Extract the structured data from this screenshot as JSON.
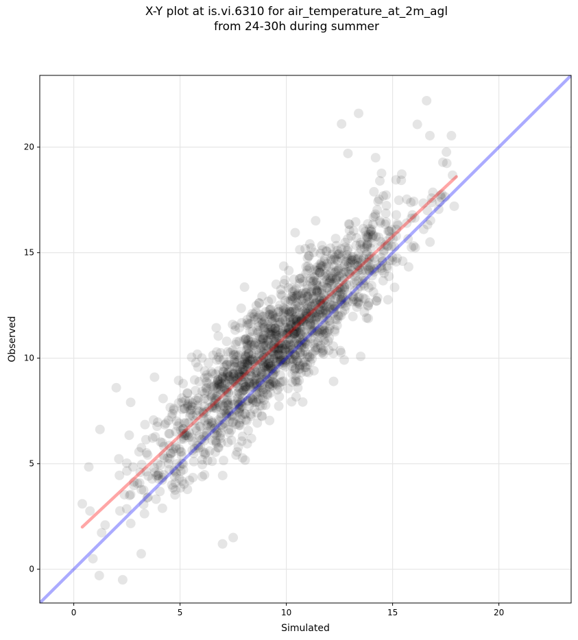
{
  "chart_data": {
    "type": "scatter",
    "title": [
      "X-Y plot at is.vi.6310 for air_temperature_at_2m_agl",
      "from 24-30h during summer"
    ],
    "xlabel": "Simulated",
    "ylabel": "Observed",
    "xlim": [
      -1.6,
      23.4
    ],
    "ylim": [
      -1.6,
      23.4
    ],
    "xticks": [
      0,
      5,
      10,
      15,
      20
    ],
    "yticks": [
      0,
      5,
      10,
      15,
      20
    ],
    "xtick_labels": [
      "0",
      "5",
      "10",
      "15",
      "20"
    ],
    "ytick_labels": [
      "0",
      "5",
      "10",
      "15",
      "20"
    ],
    "grid": true,
    "points": {
      "color": "#000000",
      "alpha": 0.1,
      "count": 1600,
      "cluster_center": [
        9.5,
        10.5
      ],
      "highlighted_outliers": [
        [
          16.6,
          22.2
        ],
        [
          13.4,
          21.6
        ],
        [
          12.6,
          21.1
        ],
        [
          12.9,
          19.7
        ],
        [
          14.2,
          19.5
        ],
        [
          14.4,
          18.4
        ],
        [
          2.0,
          8.6
        ],
        [
          3.8,
          9.1
        ],
        [
          0.4,
          3.1
        ],
        [
          2.3,
          -0.5
        ],
        [
          1.2,
          -0.3
        ],
        [
          7.0,
          1.2
        ],
        [
          7.5,
          1.5
        ],
        [
          0.9,
          0.5
        ],
        [
          17.9,
          17.2
        ]
      ]
    },
    "lines": [
      {
        "name": "",
        "color": "#ff0000",
        "alpha": 0.35,
        "x": [
          0.4,
          18.0
        ],
        "y": [
          2.0,
          18.6
        ]
      },
      {
        "name": "",
        "color": "#0000ff",
        "alpha": 0.33,
        "x": [
          -1.6,
          23.4
        ],
        "y": [
          -1.6,
          23.4
        ]
      }
    ]
  }
}
